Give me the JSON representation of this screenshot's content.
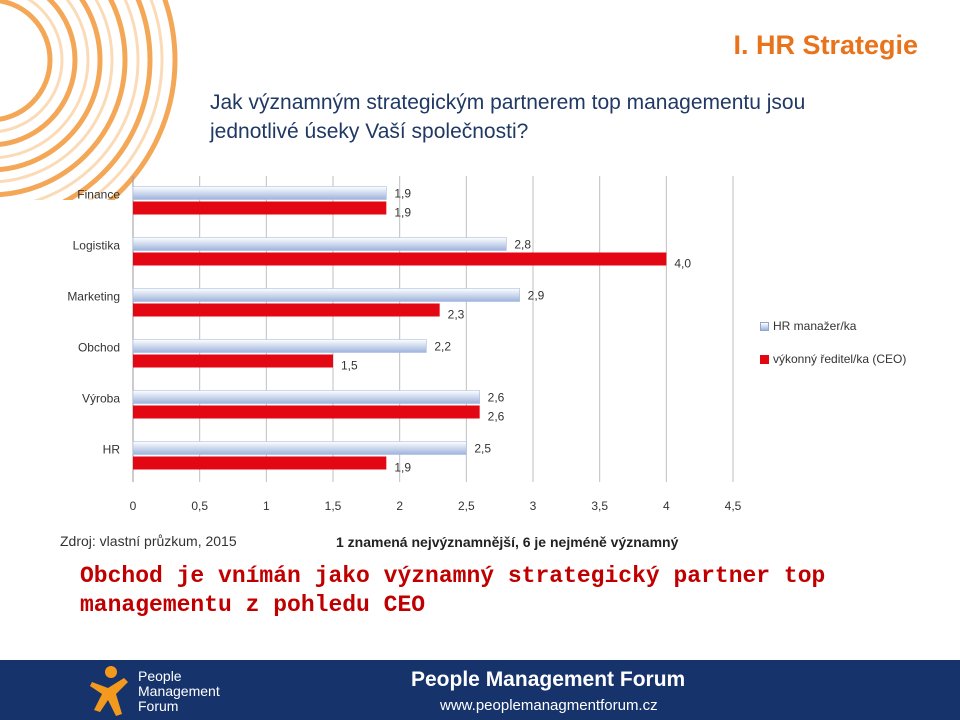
{
  "slide": {
    "section_title": "I. HR Strategie",
    "question": "Jak významným strategickým partnerem top managementu jsou jednotlivé úseky Vaší společnosti?",
    "source": "Zdroj: vlastní průzkum, 2015",
    "scale_note": "1 znamená nejvýznamnější, 6 je nejméně významný",
    "conclusion": "Obchod je vnímán jako významný strategický partner top managementu z pohledu CEO"
  },
  "colors": {
    "accent_orange": "#e8731b",
    "question_blue": "#1f3864",
    "conclusion_red": "#c00000",
    "series_hr": "#9db3dc",
    "series_ceo": "#e30613",
    "footer_bg": "#16336b"
  },
  "chart_data": {
    "type": "bar",
    "orientation": "horizontal",
    "categories": [
      "Finance",
      "Logistika",
      "Marketing",
      "Obchod",
      "Výroba",
      "HR"
    ],
    "series": [
      {
        "name": "HR manažer/ka",
        "values": [
          1.9,
          2.8,
          2.9,
          2.2,
          2.6,
          2.5
        ],
        "labels": [
          "1,9",
          "2,8",
          "2,9",
          "2,2",
          "2,6",
          "2,5"
        ]
      },
      {
        "name": "výkonný ředitel/ka (CEO)",
        "values": [
          1.9,
          4.0,
          2.3,
          1.5,
          2.6,
          1.9
        ],
        "labels": [
          "1,9",
          "4,0",
          "2,3",
          "1,5",
          "2,6",
          "1,9"
        ]
      }
    ],
    "xlim": [
      0,
      4.5
    ],
    "xticks": [
      0,
      0.5,
      1,
      1.5,
      2,
      2.5,
      3,
      3.5,
      4,
      4.5
    ],
    "xtick_labels": [
      "0",
      "0,5",
      "1",
      "1,5",
      "2",
      "2,5",
      "3",
      "3,5",
      "4",
      "4,5"
    ],
    "grid": "vertical",
    "legend_position": "right"
  },
  "footer": {
    "brand_name": "People Management Forum",
    "title": "People Management Forum",
    "url": "www.peoplemanagmentforum.cz"
  }
}
